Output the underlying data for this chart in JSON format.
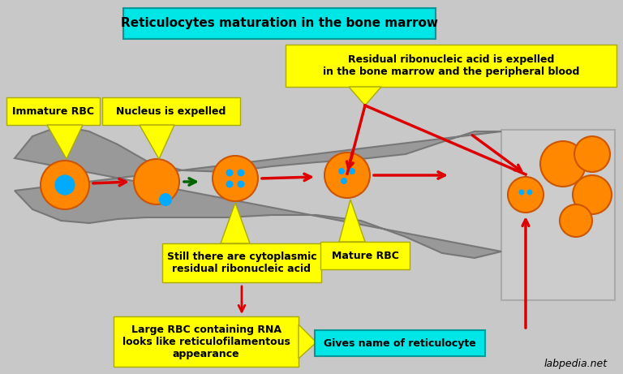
{
  "bg_color": "#c8c8c8",
  "title": "Reticulocytes maturation in the bone marrow",
  "title_box_color": "#00e5e5",
  "title_fontsize": 12,
  "watermark": "labpedia.net",
  "labels": {
    "immature_rbc": "Immature RBC",
    "nucleus_expelled": "Nucleus is expelled",
    "cytoplasmic": "Still there are cytoplasmic\nresidual ribonucleic acid",
    "mature_rbc": "Mature RBC",
    "residual": "Residual ribonucleic acid is expelled\nin the bone marrow and the peripheral blood",
    "large_rbc": "Large RBC containing RNA\nlooks like reticulofilamentous\nappearance",
    "gives_name": "Gives name of reticulocyte"
  },
  "yellow": "#ffff00",
  "cyan": "#00e5e5",
  "orange": "#ff8800",
  "red": "#dd0000",
  "dark_green": "#006400",
  "bone_color": "#999999",
  "peripheral_box_color": "#cccccc"
}
